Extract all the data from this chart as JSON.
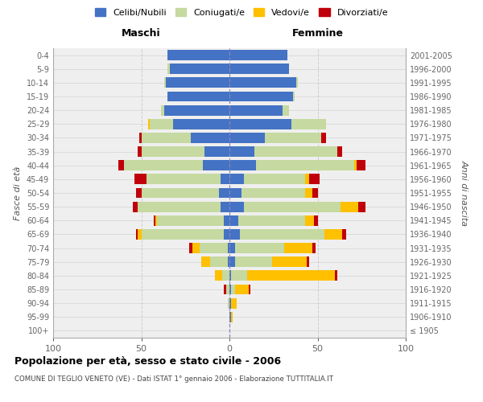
{
  "age_groups": [
    "0-4",
    "5-9",
    "10-14",
    "15-19",
    "20-24",
    "25-29",
    "30-34",
    "35-39",
    "40-44",
    "45-49",
    "50-54",
    "55-59",
    "60-64",
    "65-69",
    "70-74",
    "75-79",
    "80-84",
    "85-89",
    "90-94",
    "95-99",
    "100+"
  ],
  "birth_years": [
    "2001-2005",
    "1996-2000",
    "1991-1995",
    "1986-1990",
    "1981-1985",
    "1976-1980",
    "1971-1975",
    "1966-1970",
    "1961-1965",
    "1956-1960",
    "1951-1955",
    "1946-1950",
    "1941-1945",
    "1936-1940",
    "1931-1935",
    "1926-1930",
    "1921-1925",
    "1916-1920",
    "1911-1915",
    "1906-1910",
    "≤ 1905"
  ],
  "colors": {
    "celibi": "#4472c4",
    "coniugati": "#c5d9a0",
    "vedovi": "#ffc000",
    "divorziati": "#c0000a"
  },
  "maschi": {
    "celibi": [
      35,
      34,
      36,
      35,
      37,
      32,
      22,
      14,
      15,
      5,
      6,
      5,
      3,
      3,
      1,
      1,
      0,
      0,
      0,
      0,
      0
    ],
    "coniugati": [
      0,
      1,
      1,
      0,
      2,
      13,
      28,
      36,
      45,
      42,
      44,
      47,
      38,
      47,
      16,
      10,
      4,
      2,
      1,
      0,
      0
    ],
    "vedovi": [
      0,
      0,
      0,
      0,
      0,
      1,
      0,
      0,
      0,
      0,
      0,
      0,
      1,
      2,
      4,
      5,
      4,
      0,
      0,
      0,
      0
    ],
    "divorziati": [
      0,
      0,
      0,
      0,
      0,
      0,
      1,
      2,
      3,
      7,
      3,
      3,
      1,
      1,
      2,
      0,
      0,
      1,
      0,
      0,
      0
    ]
  },
  "femmine": {
    "celibi": [
      33,
      34,
      38,
      36,
      30,
      35,
      20,
      14,
      15,
      8,
      7,
      8,
      5,
      6,
      3,
      3,
      1,
      1,
      1,
      1,
      0
    ],
    "coniugati": [
      0,
      0,
      1,
      1,
      4,
      20,
      32,
      47,
      56,
      35,
      36,
      55,
      38,
      48,
      28,
      21,
      9,
      2,
      0,
      0,
      0
    ],
    "vedovi": [
      0,
      0,
      0,
      0,
      0,
      0,
      0,
      0,
      1,
      2,
      4,
      10,
      5,
      10,
      16,
      20,
      50,
      8,
      3,
      1,
      0
    ],
    "divorziati": [
      0,
      0,
      0,
      0,
      0,
      0,
      3,
      3,
      5,
      6,
      3,
      4,
      2,
      2,
      2,
      1,
      1,
      1,
      0,
      0,
      0
    ]
  },
  "xlim": 100,
  "title": "Popolazione per età, sesso e stato civile - 2006",
  "subtitle": "COMUNE DI TEGLIO VENETO (VE) - Dati ISTAT 1° gennaio 2006 - Elaborazione TUTTITALIA.IT",
  "ylabel_left": "Fasce di età",
  "ylabel_right": "Anni di nascita",
  "xlabel_maschi": "Maschi",
  "xlabel_femmine": "Femmine",
  "legend_labels": [
    "Celibi/Nubili",
    "Coniugati/e",
    "Vedovi/e",
    "Divorziati/e"
  ],
  "background_color": "#ffffff",
  "plot_bg_color": "#efefef",
  "grid_color": "#cccccc"
}
